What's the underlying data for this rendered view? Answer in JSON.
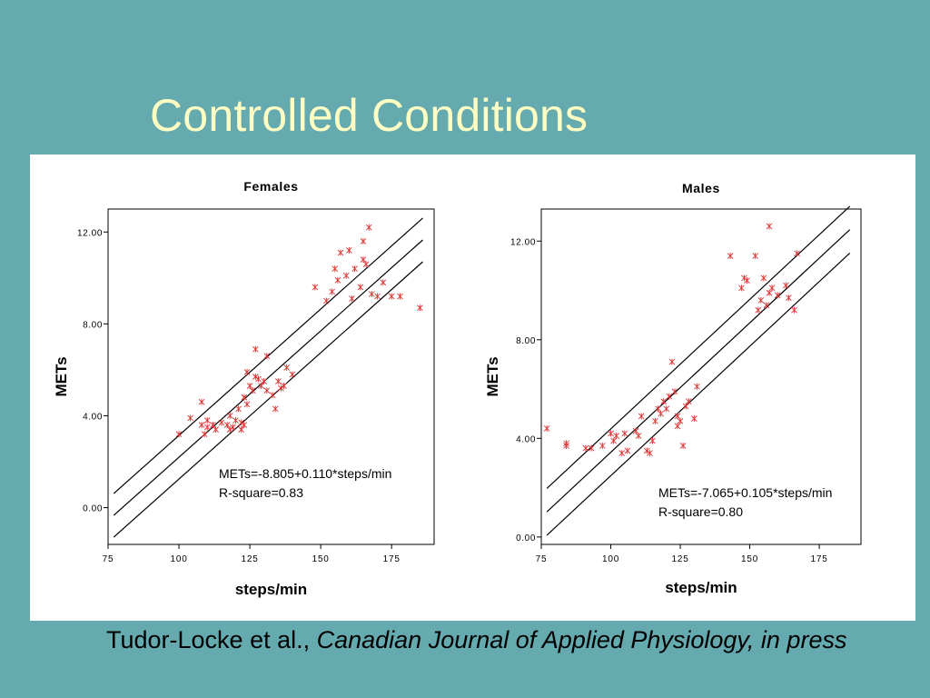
{
  "slide": {
    "title": "Controlled Conditions",
    "citation_author": "Tudor-Locke et al., ",
    "citation_journal": "Canadian Journal of Applied Physiology, in press"
  },
  "colors": {
    "background": "#64aaaf",
    "title": "#fdfdc4",
    "points": "#e03030",
    "lines": "#000000"
  },
  "chart_data": [
    {
      "type": "scatter",
      "title": "Females",
      "xlabel": "steps/min",
      "ylabel": "METs",
      "xlim": [
        75,
        190
      ],
      "ylim": [
        -1.6,
        13.0
      ],
      "xticks": [
        75,
        100,
        125,
        150,
        175
      ],
      "xtick_labels": [
        "75",
        "100",
        "125",
        "150",
        "175"
      ],
      "yticks": [
        0,
        4,
        8,
        12
      ],
      "ytick_labels": [
        "0.00",
        "4.00",
        "8.00",
        "12.00"
      ],
      "regression": {
        "intercept": -8.805,
        "slope": 0.11,
        "band": 0.95,
        "x_range": [
          77,
          186
        ]
      },
      "annotation": [
        "METs=-8.805+0.110*steps/min",
        "R-square=0.83"
      ],
      "points": [
        [
          100,
          3.2
        ],
        [
          104,
          3.9
        ],
        [
          108,
          3.6
        ],
        [
          108,
          4.6
        ],
        [
          109,
          3.2
        ],
        [
          110,
          3.5
        ],
        [
          110,
          3.8
        ],
        [
          112,
          3.6
        ],
        [
          113,
          3.4
        ],
        [
          115,
          3.7
        ],
        [
          117,
          3.6
        ],
        [
          118,
          3.4
        ],
        [
          118,
          4.0
        ],
        [
          119,
          3.5
        ],
        [
          120,
          3.8
        ],
        [
          121,
          4.3
        ],
        [
          122,
          3.4
        ],
        [
          122,
          3.7
        ],
        [
          123,
          3.6
        ],
        [
          123,
          4.8
        ],
        [
          124,
          4.5
        ],
        [
          124,
          5.9
        ],
        [
          125,
          5.3
        ],
        [
          126,
          5.1
        ],
        [
          127,
          5.7
        ],
        [
          127,
          6.9
        ],
        [
          128,
          5.6
        ],
        [
          129,
          5.3
        ],
        [
          130,
          5.5
        ],
        [
          131,
          5.1
        ],
        [
          131,
          6.6
        ],
        [
          133,
          4.9
        ],
        [
          134,
          4.3
        ],
        [
          135,
          5.5
        ],
        [
          136,
          5.2
        ],
        [
          137,
          5.3
        ],
        [
          138,
          6.1
        ],
        [
          140,
          5.8
        ],
        [
          148,
          9.6
        ],
        [
          152,
          9.0
        ],
        [
          154,
          9.4
        ],
        [
          155,
          10.4
        ],
        [
          156,
          9.9
        ],
        [
          157,
          11.1
        ],
        [
          159,
          10.1
        ],
        [
          160,
          11.2
        ],
        [
          161,
          9.1
        ],
        [
          162,
          10.4
        ],
        [
          164,
          9.6
        ],
        [
          165,
          10.8
        ],
        [
          165,
          11.6
        ],
        [
          166,
          10.6
        ],
        [
          167,
          12.2
        ],
        [
          168,
          9.3
        ],
        [
          170,
          9.2
        ],
        [
          172,
          9.8
        ],
        [
          175,
          9.2
        ],
        [
          178,
          9.2
        ],
        [
          185,
          8.7
        ]
      ]
    },
    {
      "type": "scatter",
      "title": "Males",
      "xlabel": "steps/min",
      "ylabel": "METs",
      "xlim": [
        75,
        190
      ],
      "ylim": [
        -0.3,
        13.3
      ],
      "xticks": [
        75,
        100,
        125,
        150,
        175
      ],
      "xtick_labels": [
        "75",
        "100",
        "125",
        "150",
        "175"
      ],
      "yticks": [
        0,
        4,
        8,
        12
      ],
      "ytick_labels": [
        "0.00",
        "4.00",
        "8.00",
        "12.00"
      ],
      "regression": {
        "intercept": -7.065,
        "slope": 0.105,
        "band": 0.95,
        "x_range": [
          77,
          186
        ]
      },
      "annotation": [
        "METs=-7.065+0.105*steps/min",
        "R-square=0.80"
      ],
      "points": [
        [
          77,
          4.4
        ],
        [
          84,
          3.8
        ],
        [
          84,
          3.7
        ],
        [
          91,
          3.6
        ],
        [
          93,
          3.6
        ],
        [
          97,
          3.7
        ],
        [
          100,
          4.2
        ],
        [
          101,
          3.9
        ],
        [
          102,
          4.1
        ],
        [
          104,
          3.4
        ],
        [
          105,
          4.2
        ],
        [
          106,
          3.5
        ],
        [
          109,
          4.3
        ],
        [
          110,
          4.1
        ],
        [
          111,
          4.9
        ],
        [
          113,
          3.5
        ],
        [
          114,
          3.4
        ],
        [
          115,
          3.9
        ],
        [
          116,
          4.7
        ],
        [
          117,
          5.2
        ],
        [
          118,
          5.0
        ],
        [
          119,
          5.5
        ],
        [
          120,
          5.2
        ],
        [
          121,
          5.7
        ],
        [
          122,
          7.1
        ],
        [
          123,
          5.9
        ],
        [
          124,
          4.5
        ],
        [
          124,
          4.9
        ],
        [
          125,
          4.7
        ],
        [
          126,
          3.7
        ],
        [
          127,
          5.3
        ],
        [
          128,
          5.5
        ],
        [
          130,
          4.8
        ],
        [
          131,
          6.1
        ],
        [
          143,
          11.4
        ],
        [
          147,
          10.1
        ],
        [
          148,
          10.5
        ],
        [
          149,
          10.4
        ],
        [
          152,
          11.4
        ],
        [
          153,
          9.2
        ],
        [
          154,
          9.6
        ],
        [
          155,
          10.5
        ],
        [
          156,
          9.4
        ],
        [
          157,
          9.9
        ],
        [
          157,
          12.6
        ],
        [
          158,
          10.1
        ],
        [
          160,
          9.8
        ],
        [
          163,
          10.2
        ],
        [
          164,
          9.7
        ],
        [
          166,
          9.2
        ],
        [
          167,
          11.5
        ]
      ]
    }
  ]
}
